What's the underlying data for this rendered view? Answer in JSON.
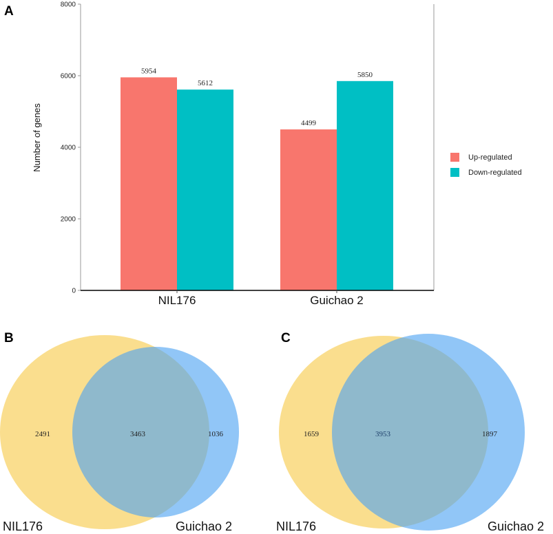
{
  "panels": {
    "a": "A",
    "b": "B",
    "c": "C"
  },
  "colors": {
    "up": "#f8766d",
    "down": "#00bfc4",
    "yellow": "#f7c948",
    "blue": "#4da3f2"
  },
  "chart_data": [
    {
      "type": "bar",
      "title": "",
      "xlabel": "",
      "ylabel": "Number of genes",
      "ylim": [
        0,
        8000
      ],
      "yticks": [
        "0",
        "2000",
        "4000",
        "6000",
        "8000"
      ],
      "categories": [
        "NIL176",
        "Guichao 2"
      ],
      "series": [
        {
          "name": "Up-regulated",
          "values": [
            5954,
            4499
          ]
        },
        {
          "name": "Down-regulated",
          "values": [
            5612,
            5850
          ]
        }
      ],
      "legend": "right"
    },
    {
      "type": "venn",
      "sets": [
        "NIL176",
        "Guichao 2"
      ],
      "values": {
        "only_a": "2491",
        "both": "3463",
        "only_b": "1036"
      }
    },
    {
      "type": "venn",
      "sets": [
        "NIL176",
        "Guichao 2"
      ],
      "values": {
        "only_a": "1659",
        "both": "3953",
        "only_b": "1897"
      }
    }
  ]
}
